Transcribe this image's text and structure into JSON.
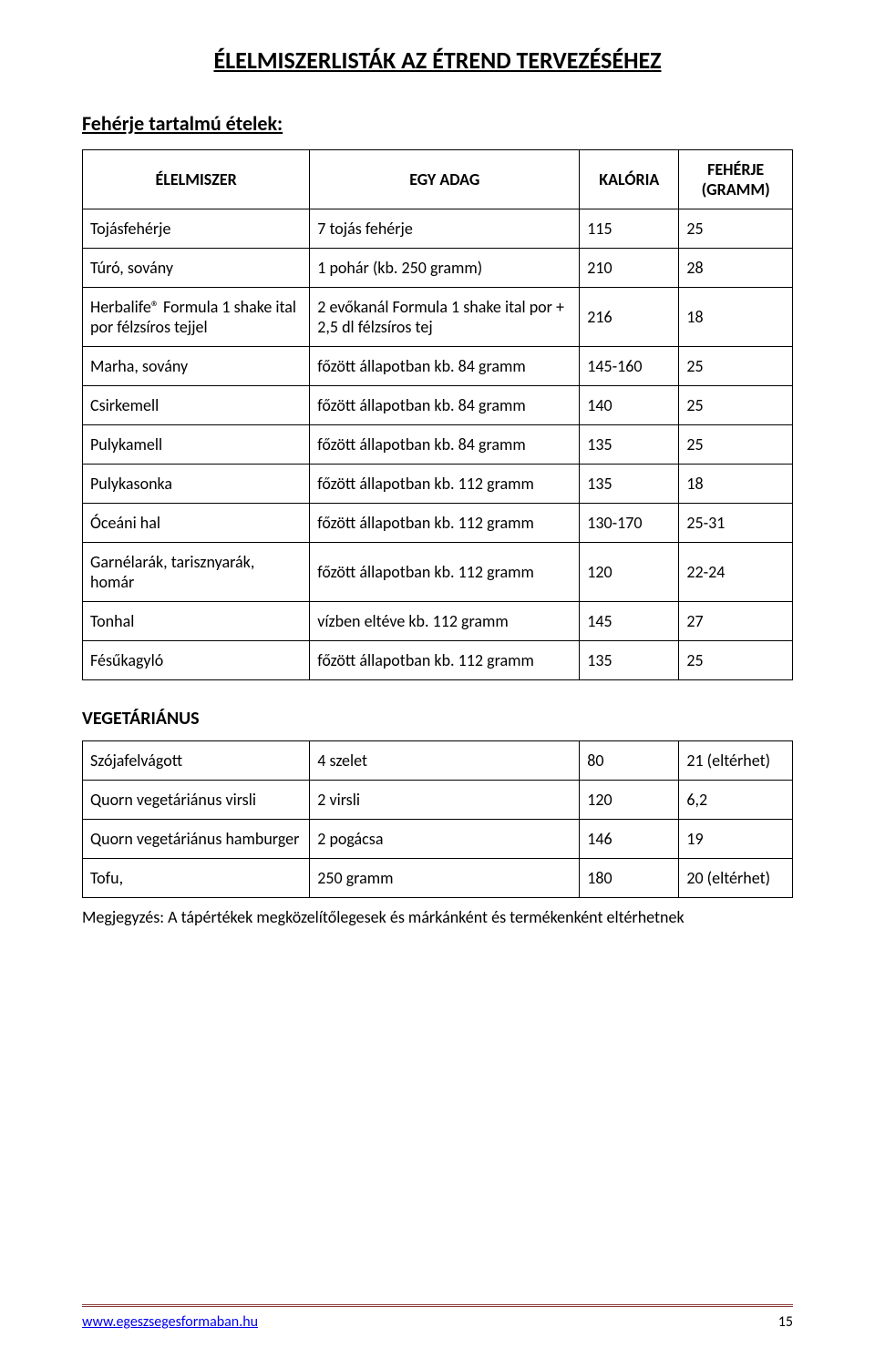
{
  "colors": {
    "text": "#000000",
    "background": "#ffffff",
    "border": "#000000",
    "footer_rule": "#8b3a3a",
    "link": "#0000ee"
  },
  "typography": {
    "body_family": "Calibri, Arial, sans-serif",
    "title_fontsize": 26,
    "h2_fontsize": 22,
    "h3_fontsize": 20,
    "cell_fontsize": 18,
    "footer_fontsize": 16
  },
  "title": "ÉLELMISZERLISTÁK AZ ÉTREND TERVEZÉSÉHEZ",
  "section1_heading": "Fehérje tartalmú ételek:",
  "table1": {
    "type": "table",
    "columns": [
      "ÉLELMISZER",
      "EGY ADAG",
      "KALÓRIA",
      "FEHÉRJE (GRAMM)"
    ],
    "col_widths_pct": [
      32,
      38,
      14,
      16
    ],
    "rows": [
      [
        "Tojásfehérje",
        "7 tojás fehérje",
        "115",
        "25"
      ],
      [
        "Túró, sovány",
        "1 pohár (kb. 250 gramm)",
        "210",
        "28"
      ],
      [
        "Herbalife® Formula 1 shake ital por félzsíros tejjel",
        "2 evőkanál Formula 1 shake ital por + 2,5 dl félzsíros tej",
        "216",
        "18"
      ],
      [
        "Marha, sovány",
        "főzött állapotban kb. 84 gramm",
        "145-160",
        "25"
      ],
      [
        "Csirkemell",
        "főzött állapotban kb. 84 gramm",
        "140",
        "25"
      ],
      [
        "Pulykamell",
        "főzött állapotban kb. 84 gramm",
        "135",
        "25"
      ],
      [
        "Pulykasonka",
        "főzött állapotban kb. 112 gramm",
        "135",
        "18"
      ],
      [
        "Óceáni hal",
        "főzött állapotban kb. 112 gramm",
        "130-170",
        "25-31"
      ],
      [
        "Garnélarák, tarisznyarák, homár",
        "főzött állapotban kb. 112 gramm",
        "120",
        "22-24"
      ],
      [
        "Tonhal",
        "vízben eltéve kb. 112 gramm",
        "145",
        "27"
      ],
      [
        "Fésűkagyló",
        "főzött állapotban kb. 112 gramm",
        "135",
        "25"
      ]
    ]
  },
  "section2_heading": "VEGETÁRIÁNUS",
  "table2": {
    "type": "table",
    "rows": [
      [
        "Szójafelvágott",
        "4 szelet",
        "80",
        "21 (eltérhet)"
      ],
      [
        "Quorn vegetáriánus virsli",
        "2 virsli",
        "120",
        "6,2"
      ],
      [
        "Quorn vegetáriánus hamburger",
        "2 pogácsa",
        "146",
        "19"
      ],
      [
        "Tofu,",
        "250 gramm",
        "180",
        "20 (eltérhet)"
      ]
    ]
  },
  "note": "Megjegyzés: A tápértékek megközelítőlegesek és márkánként és termékenként eltérhetnek",
  "footer": {
    "link": "www.egeszsegesformaban.hu",
    "page": "15"
  }
}
